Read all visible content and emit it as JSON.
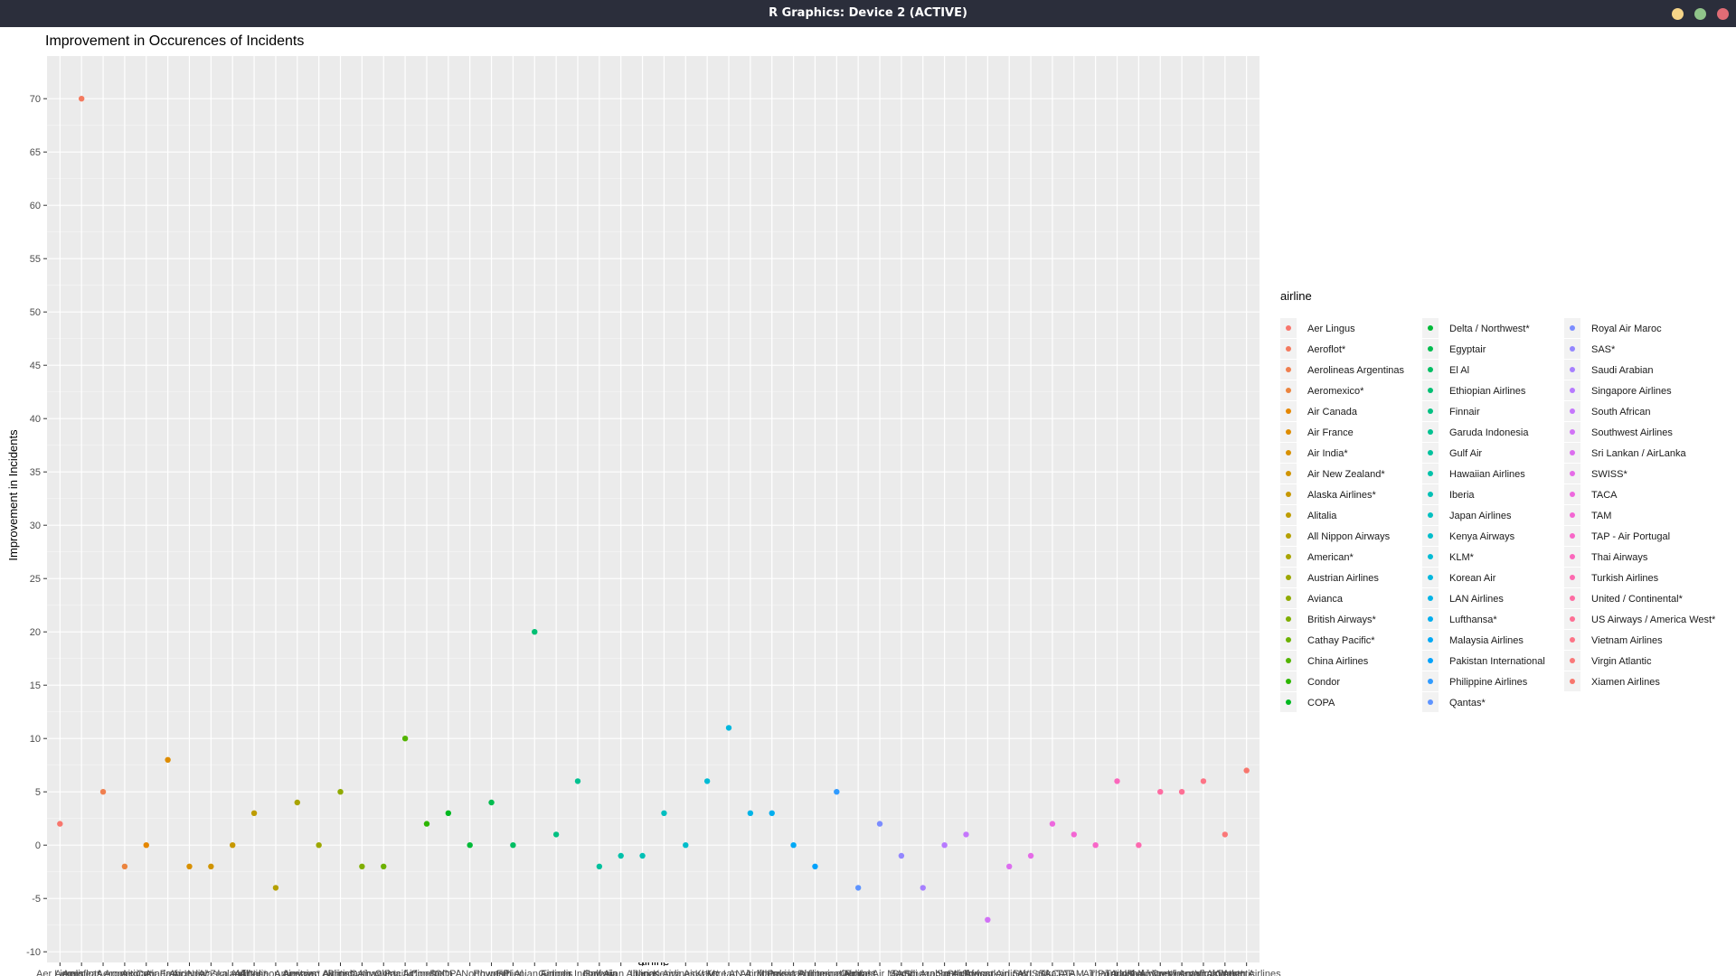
{
  "window": {
    "title": "R Graphics: Device 2 (ACTIVE)",
    "buttons": {
      "minimize": "#f5d488",
      "maximize": "#90c48a",
      "close": "#e06c75"
    }
  },
  "chart_data": {
    "type": "scatter",
    "title": "Improvement in Occurences of Incidents",
    "xlabel": "airline",
    "ylabel": "Improvement in Incidents",
    "ylim": [
      -11,
      74
    ],
    "yticks": [
      -10,
      -5,
      0,
      5,
      10,
      15,
      20,
      25,
      30,
      35,
      40,
      45,
      50,
      55,
      60,
      65,
      70
    ],
    "grid": true,
    "legend_title": "airline",
    "legend_placement": "right",
    "colors": [
      "#F8766D",
      "#F47A5F",
      "#F07F4F",
      "#EB843E",
      "#E58700",
      "#DE8C00",
      "#D89000",
      "#D09400",
      "#C79800",
      "#BE9C00",
      "#B5A000",
      "#A9A400",
      "#9DA700",
      "#90AA00",
      "#7FAE00",
      "#6CB100",
      "#53B400",
      "#2DB600",
      "#00B81F",
      "#00BA38",
      "#00BC4F",
      "#00BE63",
      "#00BF73",
      "#00C082",
      "#00C190",
      "#00C19D",
      "#00C1A9",
      "#00C0B5",
      "#00BFC0",
      "#00BDCB",
      "#00BBD5",
      "#00B7DE",
      "#00B4E7",
      "#00AEEF",
      "#00A9F6",
      "#00A2FC",
      "#309BFF",
      "#5E94FF",
      "#7B8CFF",
      "#9386FF",
      "#A780FF",
      "#B77AFF",
      "#C576FC",
      "#D172F6",
      "#DC6EEF",
      "#E56BE7",
      "#ED68DE",
      "#F366D3",
      "#F867C8",
      "#FB67BC",
      "#FD69AF",
      "#FE6CA2",
      "#FE6F94",
      "#FD7486",
      "#FA7879",
      "#F8766D"
    ],
    "categories": [
      "Aer Lingus",
      "Aeroflot*",
      "Aerolineas Argentinas",
      "Aeromexico*",
      "Air Canada",
      "Air France",
      "Air India*",
      "Air New Zealand*",
      "Alaska Airlines*",
      "Alitalia",
      "All Nippon Airways",
      "American*",
      "Austrian Airlines",
      "Avianca",
      "British Airways*",
      "Cathay Pacific*",
      "China Airlines",
      "Condor",
      "COPA",
      "Delta / Northwest*",
      "Egyptair",
      "El Al",
      "Ethiopian Airlines",
      "Finnair",
      "Garuda Indonesia",
      "Gulf Air",
      "Hawaiian Airlines",
      "Iberia",
      "Japan Airlines",
      "Kenya Airways",
      "KLM*",
      "Korean Air",
      "LAN Airlines",
      "Lufthansa*",
      "Malaysia Airlines",
      "Pakistan International",
      "Philippine Airlines",
      "Qantas*",
      "Royal Air Maroc",
      "SAS*",
      "Saudi Arabian",
      "Singapore Airlines",
      "South African",
      "Southwest Airlines",
      "Sri Lankan / AirLanka",
      "SWISS*",
      "TACA",
      "TAM",
      "TAP - Air Portugal",
      "Thai Airways",
      "Turkish Airlines",
      "United / Continental*",
      "US Airways / America West*",
      "Vietnam Airlines",
      "Virgin Atlantic",
      "Xiamen Airlines"
    ],
    "values": [
      2,
      70,
      5,
      -2,
      0,
      8,
      -2,
      -2,
      0,
      3,
      -4,
      4,
      0,
      5,
      -2,
      -2,
      10,
      2,
      3,
      0,
      4,
      0,
      20,
      1,
      6,
      -2,
      -1,
      -1,
      3,
      0,
      6,
      11,
      3,
      3,
      0,
      -2,
      5,
      -4,
      2,
      -1,
      -4,
      0,
      1,
      -7,
      -2,
      -1,
      2,
      1,
      0,
      6,
      0,
      5,
      5,
      6,
      1,
      7
    ]
  }
}
